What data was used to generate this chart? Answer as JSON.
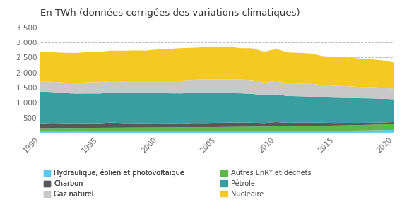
{
  "title": "En TWh (données corrigées des variations climatiques)",
  "years": [
    1990,
    1991,
    1992,
    1993,
    1994,
    1995,
    1996,
    1997,
    1998,
    1999,
    2000,
    2001,
    2002,
    2003,
    2004,
    2005,
    2006,
    2007,
    2008,
    2009,
    2010,
    2011,
    2012,
    2013,
    2014,
    2015,
    2016,
    2017,
    2018,
    2019,
    2020
  ],
  "hydraulique": [
    45,
    46,
    47,
    47,
    47,
    48,
    48,
    48,
    48,
    48,
    48,
    48,
    49,
    49,
    49,
    50,
    50,
    51,
    51,
    52,
    53,
    54,
    56,
    58,
    60,
    63,
    66,
    70,
    74,
    82,
    95
  ],
  "autres_enr": [
    105,
    107,
    108,
    110,
    112,
    114,
    116,
    118,
    120,
    122,
    124,
    126,
    128,
    130,
    133,
    136,
    140,
    143,
    147,
    150,
    154,
    157,
    160,
    164,
    168,
    172,
    177,
    182,
    188,
    193,
    198
  ],
  "charbon": [
    155,
    170,
    158,
    158,
    153,
    148,
    172,
    152,
    147,
    137,
    132,
    132,
    127,
    142,
    137,
    142,
    142,
    142,
    132,
    117,
    142,
    117,
    122,
    117,
    102,
    87,
    82,
    72,
    67,
    62,
    57
  ],
  "petrole": [
    1060,
    1030,
    1005,
    985,
    993,
    993,
    993,
    1003,
    1013,
    1013,
    1013,
    1003,
    1003,
    1003,
    1003,
    993,
    983,
    973,
    963,
    923,
    923,
    893,
    873,
    863,
    843,
    843,
    833,
    823,
    813,
    793,
    763
  ],
  "gaz_naturel": [
    330,
    340,
    350,
    360,
    365,
    375,
    390,
    385,
    395,
    390,
    405,
    420,
    430,
    435,
    445,
    455,
    455,
    455,
    455,
    420,
    445,
    420,
    425,
    425,
    405,
    395,
    385,
    375,
    375,
    365,
    350
  ],
  "nucleaire": [
    980,
    985,
    990,
    990,
    1010,
    1000,
    1010,
    1020,
    1010,
    1020,
    1050,
    1060,
    1075,
    1065,
    1075,
    1085,
    1085,
    1048,
    1058,
    1028,
    1068,
    1030,
    1018,
    1005,
    965,
    965,
    960,
    950,
    930,
    910,
    870
  ],
  "colors": {
    "hydraulique": "#5BC8F0",
    "autres_enr": "#5CB84A",
    "charbon": "#585858",
    "petrole": "#3A9EA0",
    "gaz_naturel": "#C8C8C8",
    "nucleaire": "#F5C924"
  },
  "legend_labels": {
    "hydraulique": "Hydraulique, éolien et photovoltaïque",
    "autres_enr": "Autres EnR* et déchets",
    "charbon": "Charbon",
    "petrole": "Pétrole",
    "gaz_naturel": "Gaz naturel",
    "nucleaire": "Nucléaire"
  },
  "ylim": [
    0,
    3700
  ],
  "yticks": [
    0,
    500,
    1000,
    1500,
    2000,
    2500,
    3000,
    3500
  ],
  "ytick_labels": [
    "",
    "500",
    "1 000",
    "1 500",
    "2 000",
    "2 500",
    "3 000",
    "3 500"
  ],
  "background_color": "#ffffff",
  "title_fontsize": 9.5
}
